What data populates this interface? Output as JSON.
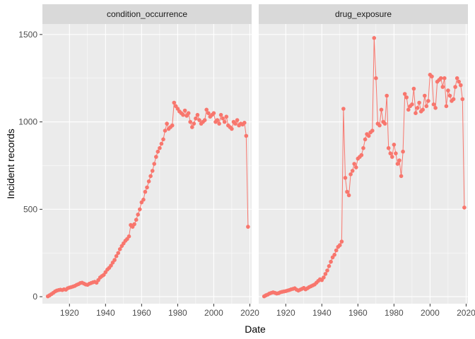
{
  "chart_data": {
    "type": "line",
    "xlabel": "Date",
    "ylabel": "Incident records",
    "xlim": [
      1905,
      2021
    ],
    "ylim": [
      -40,
      1560
    ],
    "x_ticks": [
      1920,
      1940,
      1960,
      1980,
      2000,
      2020
    ],
    "y_ticks": [
      0,
      500,
      1000,
      1500
    ],
    "grid": true,
    "colors": {
      "series": "#f8766d",
      "panel_background": "#ebebeb",
      "grid_major": "#ffffff",
      "strip_background": "#d9d9d9"
    },
    "panels": [
      {
        "title": "condition_occurrence",
        "x": [
          1908,
          1909,
          1910,
          1911,
          1912,
          1913,
          1914,
          1915,
          1916,
          1917,
          1918,
          1919,
          1920,
          1921,
          1922,
          1923,
          1924,
          1925,
          1926,
          1927,
          1928,
          1929,
          1930,
          1931,
          1932,
          1933,
          1934,
          1935,
          1936,
          1937,
          1938,
          1939,
          1940,
          1941,
          1942,
          1943,
          1944,
          1945,
          1946,
          1947,
          1948,
          1949,
          1950,
          1951,
          1952,
          1953,
          1954,
          1955,
          1956,
          1957,
          1958,
          1959,
          1960,
          1961,
          1962,
          1963,
          1964,
          1965,
          1966,
          1967,
          1968,
          1969,
          1970,
          1971,
          1972,
          1973,
          1974,
          1975,
          1976,
          1977,
          1978,
          1979,
          1980,
          1981,
          1982,
          1983,
          1984,
          1985,
          1986,
          1987,
          1988,
          1989,
          1990,
          1991,
          1992,
          1993,
          1994,
          1995,
          1996,
          1997,
          1998,
          1999,
          2000,
          2001,
          2002,
          2003,
          2004,
          2005,
          2006,
          2007,
          2008,
          2009,
          2010,
          2011,
          2012,
          2013,
          2014,
          2015,
          2016,
          2017,
          2018,
          2019
        ],
        "y": [
          2,
          8,
          15,
          22,
          30,
          35,
          38,
          40,
          38,
          42,
          40,
          48,
          52,
          55,
          58,
          62,
          68,
          72,
          78,
          80,
          75,
          70,
          68,
          74,
          78,
          82,
          85,
          80,
          95,
          110,
          118,
          125,
          140,
          155,
          165,
          178,
          195,
          210,
          232,
          250,
          272,
          290,
          305,
          320,
          330,
          345,
          410,
          400,
          415,
          440,
          470,
          500,
          540,
          555,
          600,
          625,
          660,
          690,
          720,
          760,
          800,
          830,
          850,
          875,
          900,
          950,
          990,
          960,
          970,
          980,
          1110,
          1090,
          1075,
          1060,
          1050,
          1040,
          1065,
          1035,
          1050,
          1000,
          970,
          990,
          1020,
          1040,
          1010,
          990,
          1000,
          1010,
          1070,
          1050,
          1030,
          1040,
          1050,
          1000,
          1010,
          990,
          1040,
          1020,
          1000,
          1030,
          980,
          970,
          960,
          1000,
          990,
          1010,
          980,
          990,
          985,
          995,
          920,
          400
        ]
      },
      {
        "title": "drug_exposure",
        "x": [
          1908,
          1909,
          1910,
          1911,
          1912,
          1913,
          1914,
          1915,
          1916,
          1917,
          1918,
          1919,
          1920,
          1921,
          1922,
          1923,
          1924,
          1925,
          1926,
          1927,
          1928,
          1929,
          1930,
          1931,
          1932,
          1933,
          1934,
          1935,
          1936,
          1937,
          1938,
          1939,
          1940,
          1941,
          1942,
          1943,
          1944,
          1945,
          1946,
          1947,
          1948,
          1949,
          1950,
          1951,
          1952,
          1953,
          1954,
          1955,
          1956,
          1957,
          1958,
          1959,
          1960,
          1961,
          1962,
          1963,
          1964,
          1965,
          1966,
          1967,
          1968,
          1969,
          1970,
          1971,
          1972,
          1973,
          1974,
          1975,
          1976,
          1977,
          1978,
          1979,
          1980,
          1981,
          1982,
          1983,
          1984,
          1985,
          1986,
          1987,
          1988,
          1989,
          1990,
          1991,
          1992,
          1993,
          1994,
          1995,
          1996,
          1997,
          1998,
          1999,
          2000,
          2001,
          2002,
          2003,
          2004,
          2005,
          2006,
          2007,
          2008,
          2009,
          2010,
          2011,
          2012,
          2013,
          2014,
          2015,
          2016,
          2017,
          2018,
          2019
        ],
        "y": [
          2,
          8,
          12,
          18,
          22,
          25,
          22,
          18,
          20,
          25,
          28,
          30,
          32,
          35,
          38,
          42,
          45,
          48,
          40,
          35,
          40,
          45,
          50,
          42,
          48,
          55,
          60,
          65,
          70,
          80,
          90,
          100,
          95,
          110,
          130,
          150,
          175,
          200,
          225,
          240,
          265,
          285,
          295,
          315,
          1075,
          680,
          600,
          580,
          700,
          720,
          760,
          740,
          790,
          800,
          810,
          850,
          900,
          930,
          920,
          940,
          950,
          1480,
          1250,
          990,
          980,
          1070,
          1000,
          990,
          1150,
          850,
          820,
          800,
          870,
          820,
          760,
          780,
          690,
          830,
          1160,
          1140,
          1070,
          1090,
          1100,
          1190,
          1050,
          1080,
          1110,
          1060,
          1070,
          1150,
          1090,
          1120,
          1270,
          1260,
          1100,
          1080,
          1230,
          1240,
          1250,
          1200,
          1250,
          1090,
          1180,
          1150,
          1120,
          1130,
          1200,
          1250,
          1230,
          1210,
          1130,
          510
        ]
      }
    ]
  }
}
